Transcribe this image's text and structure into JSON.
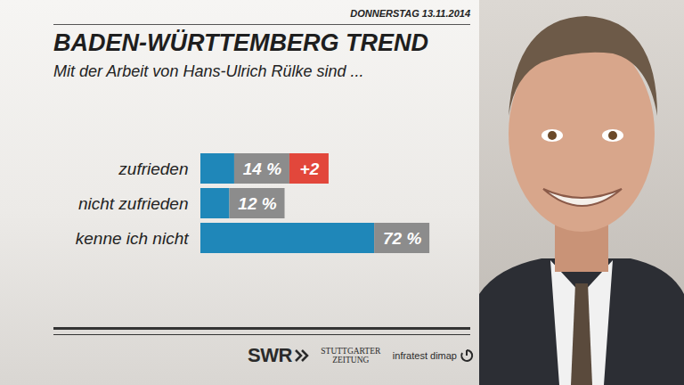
{
  "chart_data": {
    "type": "bar",
    "orientation": "horizontal",
    "date": "DONNERSTAG 13.11.2014",
    "title": "BADEN-WÜRTTEMBERG TREND",
    "subtitle": "Mit der Arbeit von Hans-Ulrich Rülke sind ...",
    "categories": [
      "zufrieden",
      "nicht zufrieden",
      "kenne ich nicht"
    ],
    "values": [
      14,
      12,
      72
    ],
    "value_labels": [
      "14 %",
      "12 %",
      "72 %"
    ],
    "data_labels": true,
    "changes": [
      2,
      null,
      null
    ],
    "change_labels": [
      "+2",
      null,
      null
    ],
    "color": "#1f87b9",
    "xlim": [
      0,
      100
    ],
    "tick_labels": false,
    "grid": false,
    "sources": [
      "SWR",
      "STUTTGARTER ZEITUNG",
      "infratest dimap"
    ]
  }
}
